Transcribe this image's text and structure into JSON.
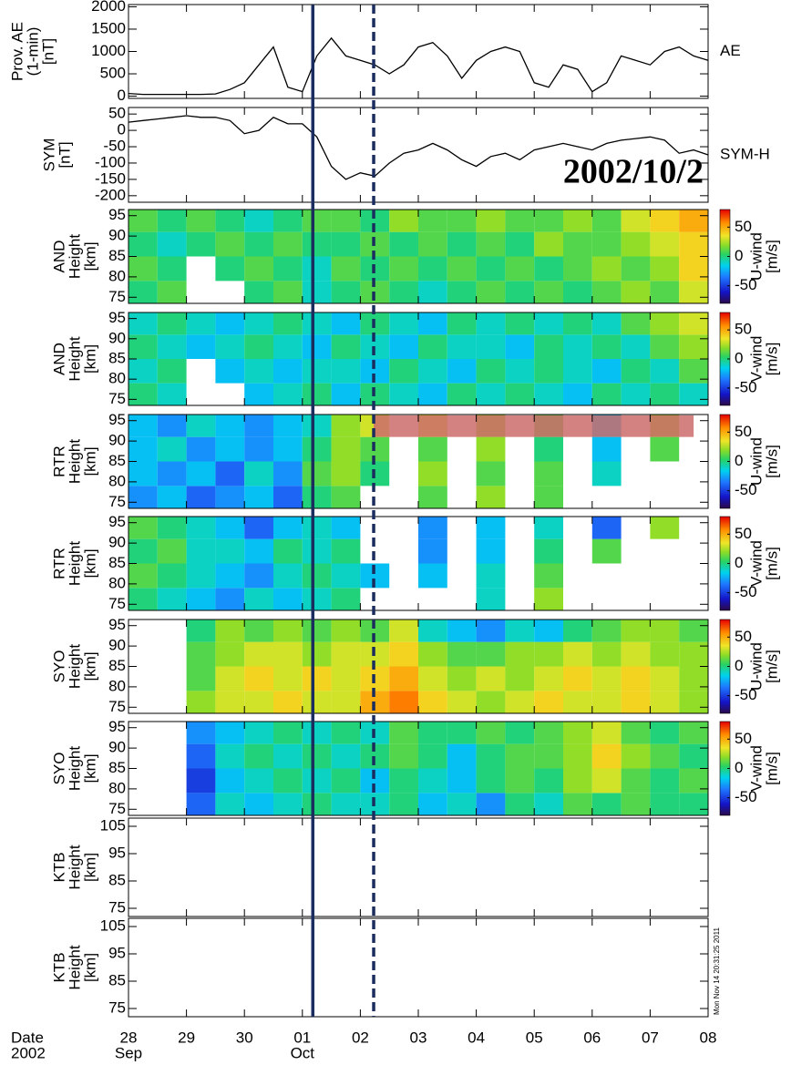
{
  "x_axis": {
    "xlim": [
      0,
      10
    ],
    "xticks": [
      {
        "value": 0,
        "label": "28"
      },
      {
        "value": 1,
        "label": "29"
      },
      {
        "value": 2,
        "label": "30"
      },
      {
        "value": 3,
        "label": "01"
      },
      {
        "value": 4,
        "label": "02"
      },
      {
        "value": 5,
        "label": "03"
      },
      {
        "value": 6,
        "label": "04"
      },
      {
        "value": 7,
        "label": "05"
      },
      {
        "value": 8,
        "label": "06"
      },
      {
        "value": 9,
        "label": "07"
      },
      {
        "value": 10,
        "label": "08"
      }
    ],
    "month_labels": [
      {
        "value": 0,
        "label": "Sep"
      },
      {
        "value": 3,
        "label": "Oct"
      }
    ],
    "label": [
      "Date",
      "2002"
    ]
  },
  "events": [
    {
      "x": 3.18,
      "style": "solid"
    },
    {
      "x": 4.23,
      "style": "dashed"
    }
  ],
  "event_color": "#1b2d5e",
  "annotation": "2002/10/2",
  "timestamp": "Mon Nov 14 20:31:25 2011",
  "chart_data": [
    {
      "type": "line",
      "ylabel": [
        "Prov. AE",
        "(1-min)",
        "[nT]"
      ],
      "right_label": "AE",
      "color": "#000000",
      "x": [
        0,
        0.25,
        0.5,
        0.75,
        1,
        1.25,
        1.5,
        1.75,
        2,
        2.25,
        2.5,
        2.75,
        3,
        3.25,
        3.5,
        3.75,
        4,
        4.25,
        4.5,
        4.75,
        5,
        5.25,
        5.5,
        5.75,
        6,
        6.25,
        6.5,
        6.75,
        7,
        7.25,
        7.5,
        7.75,
        8,
        8.25,
        8.5,
        8.75,
        9,
        9.25,
        9.5,
        9.75,
        10
      ],
      "values": [
        60,
        40,
        40,
        40,
        40,
        40,
        50,
        150,
        300,
        700,
        1100,
        200,
        100,
        900,
        1300,
        900,
        800,
        700,
        500,
        700,
        1100,
        1200,
        900,
        400,
        800,
        1000,
        1100,
        1000,
        300,
        200,
        700,
        600,
        100,
        300,
        900,
        800,
        700,
        1000,
        1100,
        900,
        800
      ],
      "ylim": [
        -50,
        2050
      ],
      "yticks": [
        0,
        500,
        1000,
        1500,
        2000
      ]
    },
    {
      "type": "line",
      "ylabel": [
        "SYM",
        "[nT]"
      ],
      "right_label": "SYM-H",
      "color": "#000000",
      "x": [
        0,
        0.25,
        0.5,
        0.75,
        1,
        1.25,
        1.5,
        1.75,
        2,
        2.25,
        2.5,
        2.75,
        3,
        3.25,
        3.5,
        3.75,
        4,
        4.25,
        4.5,
        4.75,
        5,
        5.25,
        5.5,
        5.75,
        6,
        6.25,
        6.5,
        6.75,
        7,
        7.25,
        7.5,
        7.75,
        8,
        8.25,
        8.5,
        8.75,
        9,
        9.25,
        9.5,
        9.75,
        10
      ],
      "values": [
        25,
        30,
        35,
        40,
        45,
        40,
        40,
        30,
        -10,
        0,
        40,
        20,
        20,
        -20,
        -110,
        -150,
        -130,
        -140,
        -100,
        -70,
        -60,
        -40,
        -60,
        -90,
        -110,
        -80,
        -70,
        -90,
        -60,
        -50,
        -40,
        -50,
        -60,
        -40,
        -30,
        -25,
        -20,
        -30,
        -70,
        -60,
        -75
      ],
      "ylim": [
        -220,
        70
      ],
      "yticks": [
        50,
        0,
        -50,
        -100,
        -150,
        -200
      ]
    },
    {
      "type": "heatmap",
      "ylabel": [
        "AND",
        "Height",
        "[km]"
      ],
      "clabel": [
        "U-wind",
        "[m/s]"
      ],
      "x_bins": [
        0,
        0.5,
        1,
        1.5,
        2,
        2.5,
        3,
        3.5,
        4,
        4.5,
        5,
        5.5,
        6,
        6.5,
        7,
        7.5,
        8,
        8.5,
        9,
        9.5,
        10
      ],
      "y_bins": [
        73.5,
        79,
        85,
        91,
        96.5
      ],
      "values": [
        [
          0,
          10,
          null,
          null,
          0,
          10,
          -10,
          0,
          10,
          0,
          -10,
          0,
          10,
          0,
          10,
          0,
          10,
          20,
          10,
          30
        ],
        [
          10,
          0,
          null,
          0,
          10,
          0,
          -10,
          10,
          0,
          10,
          0,
          10,
          0,
          10,
          0,
          10,
          20,
          10,
          20,
          40
        ],
        [
          0,
          -10,
          0,
          10,
          0,
          10,
          0,
          0,
          10,
          0,
          10,
          0,
          10,
          0,
          20,
          10,
          10,
          20,
          30,
          40
        ],
        [
          10,
          0,
          10,
          0,
          -10,
          0,
          10,
          10,
          0,
          20,
          10,
          10,
          20,
          10,
          10,
          20,
          10,
          30,
          40,
          50
        ]
      ],
      "ylim": [
        73.5,
        96.5
      ],
      "yticks": [
        75,
        80,
        85,
        90,
        95
      ],
      "clim": [
        -80,
        80
      ],
      "cticks": [
        50,
        0,
        -50
      ]
    },
    {
      "type": "heatmap",
      "ylabel": [
        "AND",
        "Height",
        "[km]"
      ],
      "clabel": [
        "V-wind",
        "[m/s]"
      ],
      "x_bins": [
        0,
        0.5,
        1,
        1.5,
        2,
        2.5,
        3,
        3.5,
        4,
        4.5,
        5,
        5.5,
        6,
        6.5,
        7,
        7.5,
        8,
        8.5,
        9,
        9.5,
        10
      ],
      "y_bins": [
        73.5,
        79,
        85,
        91,
        96.5
      ],
      "values": [
        [
          0,
          -10,
          null,
          null,
          -20,
          -10,
          0,
          -20,
          0,
          -10,
          -20,
          0,
          -10,
          0,
          -10,
          -20,
          0,
          -10,
          0,
          -10
        ],
        [
          -10,
          0,
          null,
          -20,
          -10,
          -20,
          -10,
          -10,
          -20,
          0,
          -10,
          -20,
          0,
          -10,
          0,
          -10,
          -20,
          0,
          -10,
          10
        ],
        [
          0,
          -10,
          -20,
          -10,
          0,
          -10,
          -20,
          0,
          -10,
          -20,
          0,
          -10,
          -10,
          -20,
          0,
          -10,
          0,
          -10,
          10,
          20
        ],
        [
          -10,
          0,
          -10,
          -20,
          -10,
          0,
          -10,
          -20,
          0,
          -10,
          -20,
          0,
          -10,
          0,
          -10,
          0,
          -10,
          10,
          20,
          30
        ]
      ],
      "ylim": [
        73.5,
        96.5
      ],
      "yticks": [
        75,
        80,
        85,
        90,
        95
      ],
      "clim": [
        -80,
        80
      ],
      "cticks": [
        50,
        0,
        -50
      ]
    },
    {
      "type": "heatmap",
      "ylabel": [
        "RTR",
        "Height",
        "[km]"
      ],
      "clabel": [
        "U-wind",
        "[m/s]"
      ],
      "x_bins": [
        0,
        0.5,
        1,
        1.5,
        2,
        2.5,
        3,
        3.5,
        4,
        4.5,
        5,
        5.5,
        6,
        6.5,
        7,
        7.5,
        8,
        8.5,
        9,
        9.5,
        10
      ],
      "y_bins": [
        73.5,
        79,
        85,
        91,
        96.5
      ],
      "values": [
        [
          -30,
          -20,
          -40,
          -30,
          -20,
          -40,
          0,
          10,
          null,
          null,
          10,
          null,
          20,
          null,
          10,
          null,
          null,
          null,
          null,
          null
        ],
        [
          -20,
          -30,
          -20,
          -40,
          -10,
          -30,
          10,
          20,
          0,
          null,
          20,
          null,
          10,
          null,
          10,
          null,
          -10,
          null,
          null,
          null
        ],
        [
          -20,
          -10,
          -30,
          -20,
          -30,
          -20,
          0,
          20,
          10,
          null,
          10,
          null,
          20,
          null,
          0,
          null,
          -20,
          null,
          10,
          null
        ],
        [
          -20,
          -30,
          -10,
          -20,
          -30,
          -20,
          -10,
          20,
          30,
          null,
          30,
          null,
          20,
          null,
          10,
          null,
          -20,
          null,
          20,
          null
        ]
      ],
      "ylim": [
        73.5,
        96.5
      ],
      "yticks": [
        75,
        80,
        85,
        90,
        95
      ],
      "clim": [
        -80,
        80
      ],
      "cticks": [
        50,
        0,
        -50
      ],
      "highlight": {
        "x": [
          4.23,
          9.75
        ],
        "y": [
          91,
          96.3
        ],
        "color": "#cd6b6b"
      }
    },
    {
      "type": "heatmap",
      "ylabel": [
        "RTR",
        "Height",
        "[km]"
      ],
      "clabel": [
        "V-wind",
        "[m/s]"
      ],
      "x_bins": [
        0,
        0.5,
        1,
        1.5,
        2,
        2.5,
        3,
        3.5,
        4,
        4.5,
        5,
        5.5,
        6,
        6.5,
        7,
        7.5,
        8,
        8.5,
        9,
        9.5,
        10
      ],
      "y_bins": [
        73.5,
        79,
        85,
        91,
        96.5
      ],
      "values": [
        [
          0,
          -10,
          -20,
          -30,
          -10,
          -20,
          -10,
          0,
          null,
          null,
          null,
          null,
          -10,
          null,
          20,
          null,
          null,
          null,
          null,
          null
        ],
        [
          10,
          0,
          -10,
          -20,
          -30,
          -10,
          0,
          -10,
          -20,
          null,
          -20,
          null,
          -10,
          null,
          10,
          null,
          null,
          null,
          null,
          null
        ],
        [
          0,
          10,
          -10,
          -10,
          -20,
          0,
          -10,
          0,
          null,
          null,
          -30,
          null,
          -20,
          null,
          0,
          null,
          10,
          null,
          null,
          null
        ],
        [
          10,
          0,
          -10,
          -20,
          -40,
          -20,
          -10,
          -20,
          null,
          null,
          -30,
          null,
          -20,
          null,
          -10,
          null,
          -40,
          null,
          20,
          null
        ]
      ],
      "ylim": [
        73.5,
        96.5
      ],
      "yticks": [
        75,
        80,
        85,
        90,
        95
      ],
      "clim": [
        -80,
        80
      ],
      "cticks": [
        50,
        0,
        -50
      ]
    },
    {
      "type": "heatmap",
      "ylabel": [
        "SYO",
        "Height",
        "[km]"
      ],
      "clabel": [
        "U-wind",
        "[m/s]"
      ],
      "x_bins": [
        0,
        0.5,
        1,
        1.5,
        2,
        2.5,
        3,
        3.5,
        4,
        4.5,
        5,
        5.5,
        6,
        6.5,
        7,
        7.5,
        8,
        8.5,
        9,
        9.5,
        10
      ],
      "y_bins": [
        73.5,
        79,
        85,
        91,
        96.5
      ],
      "values": [
        [
          null,
          null,
          20,
          30,
          30,
          40,
          30,
          30,
          50,
          60,
          40,
          30,
          20,
          30,
          40,
          30,
          30,
          40,
          30,
          20
        ],
        [
          null,
          null,
          10,
          30,
          40,
          30,
          40,
          30,
          40,
          50,
          30,
          20,
          30,
          20,
          30,
          40,
          30,
          40,
          30,
          20
        ],
        [
          null,
          null,
          10,
          20,
          30,
          30,
          20,
          30,
          30,
          40,
          20,
          10,
          10,
          20,
          20,
          30,
          20,
          30,
          20,
          20
        ],
        [
          null,
          null,
          0,
          20,
          10,
          20,
          10,
          20,
          10,
          30,
          -10,
          -20,
          -30,
          -10,
          -20,
          0,
          10,
          20,
          20,
          10
        ]
      ],
      "ylim": [
        73.5,
        96.5
      ],
      "yticks": [
        75,
        80,
        85,
        90,
        95
      ],
      "clim": [
        -80,
        80
      ],
      "cticks": [
        50,
        0,
        -50
      ]
    },
    {
      "type": "heatmap",
      "ylabel": [
        "SYO",
        "Height",
        "[km]"
      ],
      "clabel": [
        "V-wind",
        "[m/s]"
      ],
      "x_bins": [
        0,
        0.5,
        1,
        1.5,
        2,
        2.5,
        3,
        3.5,
        4,
        4.5,
        5,
        5.5,
        6,
        6.5,
        7,
        7.5,
        8,
        8.5,
        9,
        9.5,
        10
      ],
      "y_bins": [
        73.5,
        79,
        85,
        91,
        96.5
      ],
      "values": [
        [
          null,
          null,
          -40,
          -10,
          -20,
          -10,
          0,
          -10,
          -10,
          0,
          -20,
          -10,
          -30,
          0,
          -10,
          10,
          0,
          10,
          0,
          0
        ],
        [
          null,
          null,
          -50,
          -20,
          -10,
          0,
          -10,
          0,
          -20,
          0,
          -10,
          -20,
          0,
          10,
          0,
          20,
          30,
          10,
          0,
          10
        ],
        [
          null,
          null,
          -40,
          -10,
          0,
          -10,
          0,
          -10,
          0,
          10,
          0,
          -20,
          0,
          10,
          10,
          20,
          40,
          20,
          10,
          0
        ],
        [
          null,
          null,
          -30,
          -20,
          -10,
          0,
          -10,
          0,
          -10,
          10,
          0,
          0,
          10,
          0,
          10,
          20,
          30,
          10,
          0,
          10
        ]
      ],
      "ylim": [
        73.5,
        96.5
      ],
      "yticks": [
        75,
        80,
        85,
        90,
        95
      ],
      "clim": [
        -80,
        80
      ],
      "cticks": [
        50,
        0,
        -50
      ]
    },
    {
      "type": "empty",
      "ylabel": [
        "KTB",
        "Height",
        "[km]"
      ],
      "ylim": [
        72,
        108
      ],
      "yticks": [
        75,
        85,
        95,
        105
      ]
    },
    {
      "type": "empty",
      "ylabel": [
        "KTB",
        "Height",
        "[km]"
      ],
      "ylim": [
        72,
        108
      ],
      "yticks": [
        75,
        85,
        95,
        105
      ]
    }
  ]
}
